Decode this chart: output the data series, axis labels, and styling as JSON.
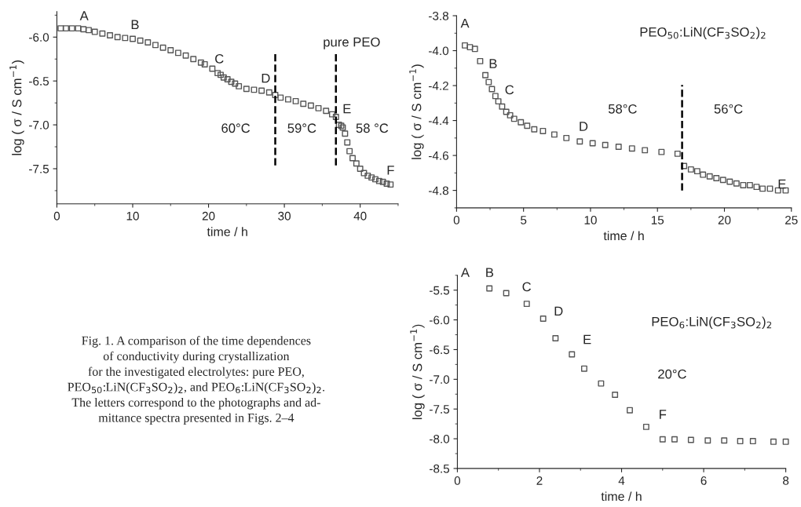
{
  "chart_data": [
    {
      "type": "scatter",
      "xlabel": "time / h",
      "ylabel": "log ( σ / S cm$^{−1}$)",
      "xlim": [
        0,
        45
      ],
      "xticks": [
        0,
        10,
        20,
        30,
        40
      ],
      "ylim": [
        -7.9,
        -5.71
      ],
      "yticks": [
        {
          "value": -6,
          "label": "-6.0"
        },
        -6.5,
        {
          "value": -7,
          "label": "-7.0"
        },
        -7.5
      ],
      "marker": "square",
      "series": [
        {
          "color": "#555555",
          "x": [
            0.5,
            1.2,
            2,
            2.8,
            3.5,
            4.2,
            5,
            6,
            7,
            8,
            9,
            10,
            11,
            12,
            13,
            14,
            15,
            16,
            17,
            18,
            19,
            19.5,
            20.5,
            21.2,
            21.6,
            22,
            22.5,
            23,
            23.5,
            24,
            25,
            26,
            27,
            28,
            28.8,
            29.5,
            30.5,
            31.5,
            32.5,
            33.5,
            34.5,
            35.5,
            36.3,
            36.8,
            37.2,
            37.5,
            37.7,
            38,
            38.3,
            38.6,
            39,
            39.5,
            40,
            40.5,
            41,
            41.5,
            42,
            42.5,
            43,
            43.5,
            44
          ],
          "values": [
            -5.9,
            -5.9,
            -5.9,
            -5.9,
            -5.91,
            -5.92,
            -5.94,
            -5.96,
            -5.98,
            -6.0,
            -6.01,
            -6.02,
            -6.04,
            -6.06,
            -6.09,
            -6.12,
            -6.15,
            -6.18,
            -6.21,
            -6.25,
            -6.29,
            -6.31,
            -6.36,
            -6.41,
            -6.43,
            -6.46,
            -6.48,
            -6.51,
            -6.53,
            -6.56,
            -6.59,
            -6.6,
            -6.61,
            -6.63,
            -6.66,
            -6.69,
            -6.71,
            -6.73,
            -6.76,
            -6.78,
            -6.81,
            -6.84,
            -6.88,
            -6.91,
            -7.0,
            -7.01,
            -7.03,
            -7.1,
            -7.2,
            -7.3,
            -7.38,
            -7.44,
            -7.5,
            -7.55,
            -7.58,
            -7.6,
            -7.62,
            -7.64,
            -7.65,
            -7.67,
            -7.68
          ]
        }
      ],
      "ref_lines": [
        {
          "axis": "x",
          "value": 28.8,
          "line_style": "dashed",
          "color": "#000000"
        },
        {
          "axis": "x",
          "value": 36.8,
          "line_style": "dashed",
          "color": "#000000"
        }
      ],
      "annotations": [
        "A",
        "B",
        "C",
        "D",
        "E",
        "F",
        "pure PEO",
        "60°C",
        "59°C",
        "58 °C"
      ]
    },
    {
      "type": "scatter",
      "xlabel": "time / h",
      "ylabel": "log ( σ / S cm$^{−1}$)",
      "xlim": [
        0,
        25
      ],
      "xticks": [
        0,
        5,
        10,
        15,
        20,
        25
      ],
      "ylim": [
        -4.9,
        -3.8
      ],
      "yticks": [
        -3.8,
        {
          "value": -4,
          "label": "-4.0"
        },
        -4.2,
        -4.4,
        -4.6,
        -4.8
      ],
      "marker": "square",
      "series": [
        {
          "color": "#555555",
          "x": [
            0.62,
            1.0,
            1.37,
            1.76,
            2.15,
            2.4,
            2.64,
            2.9,
            3.12,
            3.4,
            3.71,
            4.0,
            4.3,
            4.8,
            5.27,
            5.8,
            6.45,
            7.3,
            8.2,
            9.2,
            10.16,
            11.1,
            12.1,
            13.1,
            14.06,
            15.3,
            16.5,
            16.99,
            17.5,
            17.97,
            18.4,
            18.9,
            19.4,
            19.9,
            20.4,
            20.9,
            21.4,
            21.9,
            22.4,
            22.85,
            23.4,
            24.0,
            24.57
          ],
          "values": [
            -3.97,
            -3.98,
            -3.99,
            -4.06,
            -4.14,
            -4.18,
            -4.22,
            -4.26,
            -4.29,
            -4.32,
            -4.35,
            -4.37,
            -4.39,
            -4.41,
            -4.43,
            -4.45,
            -4.46,
            -4.48,
            -4.5,
            -4.52,
            -4.53,
            -4.54,
            -4.55,
            -4.56,
            -4.57,
            -4.58,
            -4.59,
            -4.66,
            -4.68,
            -4.69,
            -4.71,
            -4.72,
            -4.73,
            -4.74,
            -4.75,
            -4.76,
            -4.77,
            -4.77,
            -4.78,
            -4.79,
            -4.79,
            -4.8,
            -4.8
          ]
        }
      ],
      "ref_lines": [
        {
          "axis": "x",
          "value": 16.84,
          "line_style": "dashed",
          "color": "#000000"
        }
      ],
      "annotations": [
        "A",
        "B",
        "C",
        "D",
        "E",
        "PEO$_{50}$:LiN(CF$_{3}$SO$_{2}$)$_{2}$",
        "58°C",
        "56°C"
      ]
    },
    {
      "type": "scatter",
      "xlabel": "time / h",
      "ylabel": "log ( σ / S cm$^{−1}$)",
      "xlim": [
        0,
        8
      ],
      "xticks": [
        0,
        2,
        4,
        6,
        8
      ],
      "ylim": [
        -8.5,
        -5.25
      ],
      "yticks": [
        -5.5,
        {
          "value": -6,
          "label": "-6.0"
        },
        -6.5,
        {
          "value": -7,
          "label": "-7.0"
        },
        -7.5,
        {
          "value": -8,
          "label": "-8.0"
        },
        -8.5
      ],
      "marker": "square",
      "series": [
        {
          "color": "#555555",
          "x": [
            0.78,
            1.19,
            1.69,
            2.09,
            2.39,
            2.79,
            3.09,
            3.5,
            3.84,
            4.2,
            4.6,
            5.0,
            5.29,
            5.69,
            6.1,
            6.5,
            6.89,
            7.2,
            7.7,
            8.0
          ],
          "values": [
            -5.47,
            -5.55,
            -5.73,
            -5.98,
            -6.31,
            -6.58,
            -6.82,
            -7.07,
            -7.26,
            -7.52,
            -7.8,
            -8.01,
            -8.01,
            -8.02,
            -8.03,
            -8.03,
            -8.04,
            -8.04,
            -8.05,
            -8.05
          ]
        }
      ],
      "annotations": [
        "A",
        "B",
        "C",
        "D",
        "E",
        "F",
        "PEO$_{6}$:LiN(CF$_{3}$SO$_{2}$)$_{2}$",
        "20°C"
      ]
    },
    {
      "type": "other",
      "annotations": [
        "Fig. 1. A comparison of the time dependences\nof conductivity during crystallization\nfor the investigated electrolytes: pure PEO,\nPEO$_{50}$:LiN(CF$_{3}$SO$_{2}$)$_{2}$, and PEO$_{6}$:LiN(CF$_{3}$SO$_{2}$)$_{2}$.\nThe letters correspond to the photographs and ad-\nmittance spectra presented in Figs. 2–4"
      ]
    }
  ]
}
